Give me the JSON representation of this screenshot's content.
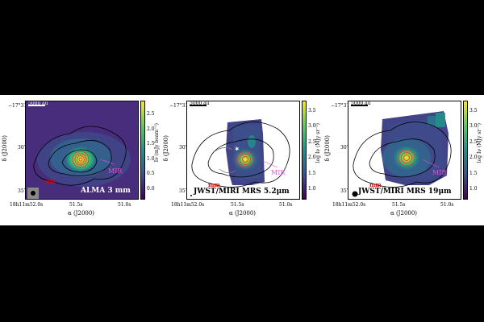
{
  "colors": {
    "bg_dark": "#440154",
    "map_mid": "#3b528b",
    "map_green": "#21918c",
    "map_bright": "#5ec962",
    "map_peak": "#fde725",
    "mir_label": "#e64fd8",
    "mmm_label": "#e00000",
    "contour_red": "#e04030"
  },
  "figure": {
    "panels": [
      {
        "panel_label": "ALMA 3 mm",
        "scalebar": "5000 au",
        "dec_top": "−17°31′25″",
        "dec_mid": "30″",
        "dec_bot": "35″",
        "dec_axis": "δ (J2000)",
        "ra_left": "18h11m52.0s",
        "ra_mid": "51.5s",
        "ra_right": "51.0s",
        "ra_axis": "α (J2000)",
        "mir_label": "MIR",
        "mmm_label": "mm",
        "colorbar_label": "Iν (mJy beam⁻¹)",
        "colorbar_ticks": [
          "0.0",
          "0.5",
          "1.0",
          "1.5",
          "2.0",
          "2.5"
        ]
      },
      {
        "panel_label": "JWST/MIRI MRS 5.2μm",
        "scalebar": "5000 au",
        "dec_top": "−17°31′25″",
        "dec_mid": "30″",
        "dec_bot": "35″",
        "dec_axis": "δ (J2000)",
        "ra_left": "18h11m52.0s",
        "ra_mid": "51.5s",
        "ra_right": "51.0s",
        "ra_axis": "α (J2000)",
        "mir_label": "MIR",
        "mmm_label": "mm",
        "colorbar_label": "log Iν (MJy sr⁻¹)",
        "colorbar_ticks": [
          "1.0",
          "1.5",
          "2.0",
          "2.5",
          "3.0",
          "3.5"
        ]
      },
      {
        "panel_label": "JWST/MIRI MRS 19μm",
        "scalebar": "5000 au",
        "dec_top": "−17°31′25″",
        "dec_mid": "30″",
        "dec_bot": "35″",
        "dec_axis": "δ (J2000)",
        "ra_left": "18h11m52.0s",
        "ra_mid": "51.5s",
        "ra_right": "51.0s",
        "ra_axis": "α (J2000)",
        "mir_label": "MIR",
        "mmm_label": "mm",
        "colorbar_label": "log Iν (MJy sr⁻¹)",
        "colorbar_ticks": [
          "1.0",
          "1.5",
          "2.0",
          "2.5",
          "3.0",
          "3.5"
        ]
      }
    ]
  }
}
